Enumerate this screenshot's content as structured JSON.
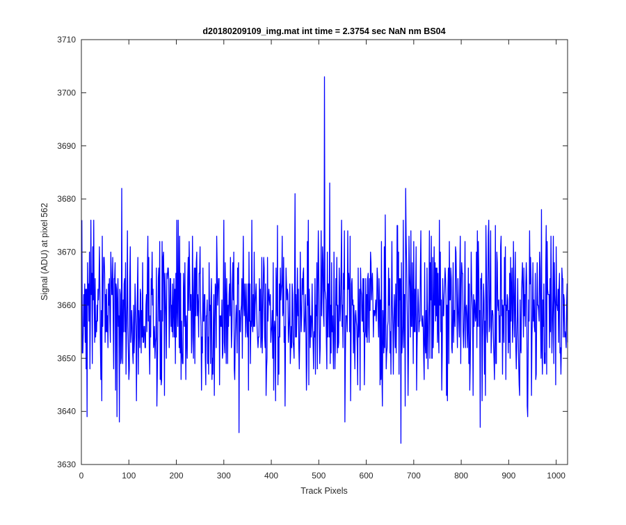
{
  "chart_data": {
    "type": "line",
    "title": "d20180209109_img.mat int time = 2.3754 sec  NaN nm BS04",
    "xlabel": "Track Pixels",
    "ylabel": "Signal (ADU) at pixel 562",
    "xlim": [
      0,
      1024
    ],
    "ylim": [
      3630,
      3710
    ],
    "xticks": [
      0,
      100,
      200,
      300,
      400,
      500,
      600,
      700,
      800,
      900,
      1000
    ],
    "yticks": [
      3630,
      3640,
      3650,
      3660,
      3670,
      3680,
      3690,
      3700,
      3710
    ],
    "grid": false,
    "series": [
      {
        "color": "#0000ff",
        "x_start": 1,
        "x_step": 1,
        "note_points": "1024 noisy samples around 3659; notable values listed in highlights",
        "highlights": [
          {
            "x": 1,
            "y": 3676
          },
          {
            "x": 12,
            "y": 3639
          },
          {
            "x": 26,
            "y": 3676
          },
          {
            "x": 75,
            "y": 3639
          },
          {
            "x": 80,
            "y": 3638
          },
          {
            "x": 85,
            "y": 3682
          },
          {
            "x": 332,
            "y": 3636
          },
          {
            "x": 450,
            "y": 3681
          },
          {
            "x": 512,
            "y": 3703
          },
          {
            "x": 523,
            "y": 3683
          },
          {
            "x": 555,
            "y": 3638
          },
          {
            "x": 640,
            "y": 3677
          },
          {
            "x": 673,
            "y": 3634
          },
          {
            "x": 683,
            "y": 3682
          },
          {
            "x": 840,
            "y": 3637
          },
          {
            "x": 940,
            "y": 3639
          },
          {
            "x": 969,
            "y": 3678
          }
        ]
      }
    ]
  }
}
